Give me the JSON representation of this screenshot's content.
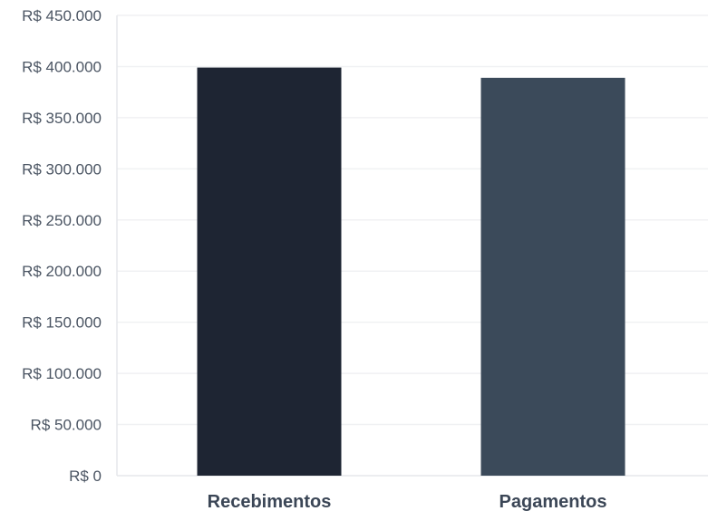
{
  "chart_data": {
    "type": "bar",
    "title": "",
    "xlabel": "",
    "ylabel": "",
    "categories": [
      "Recebimentos",
      "Pagamentos"
    ],
    "values": [
      399000,
      389000
    ],
    "ylim": [
      0,
      450000
    ],
    "y_ticks": [
      0,
      50000,
      100000,
      150000,
      200000,
      250000,
      300000,
      350000,
      400000,
      450000
    ],
    "y_tick_labels": [
      "R$ 0",
      "R$ 50.000",
      "R$ 100.000",
      "R$ 150.000",
      "R$ 200.000",
      "R$ 250.000",
      "R$ 300.000",
      "R$ 350.000",
      "R$ 400.000",
      "R$ 450.000"
    ],
    "bar_colors": [
      "#1e2533",
      "#3b4a5a"
    ],
    "grid": true,
    "legend": "none"
  }
}
